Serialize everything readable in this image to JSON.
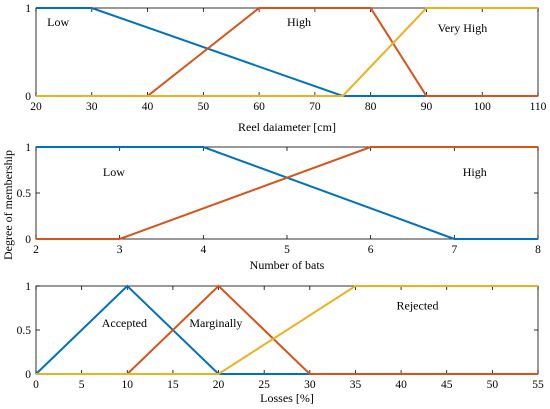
{
  "figure": {
    "ylabel": "Degree of membership"
  },
  "chart_data": [
    {
      "type": "line",
      "xlabel": "Reel daiameter [cm]",
      "ylabel": "",
      "xlim": [
        20,
        110
      ],
      "ylim": [
        0,
        1
      ],
      "xticks": [
        20,
        30,
        40,
        50,
        60,
        70,
        80,
        90,
        100,
        110
      ],
      "yticks": [
        0,
        1
      ],
      "series": [
        {
          "name": "Low",
          "color": "#0072BD",
          "x": [
            20,
            30,
            75,
            110
          ],
          "y": [
            1,
            1,
            0,
            0
          ],
          "label_at": [
            22,
            0.84
          ]
        },
        {
          "name": "High",
          "color": "#D95319",
          "x": [
            20,
            40,
            60,
            80,
            90,
            110
          ],
          "y": [
            0,
            0,
            1,
            1,
            0,
            0
          ],
          "label_at": [
            65,
            0.84
          ]
        },
        {
          "name": "Very High",
          "color": "#EDB120",
          "x": [
            20,
            75,
            90,
            110
          ],
          "y": [
            0,
            0,
            1,
            1
          ],
          "label_at": [
            92,
            0.77
          ]
        }
      ]
    },
    {
      "type": "line",
      "xlabel": "Number of bats",
      "ylabel": "",
      "xlim": [
        2,
        8
      ],
      "ylim": [
        0,
        1
      ],
      "xticks": [
        2,
        3,
        4,
        5,
        6,
        7,
        8
      ],
      "yticks": [
        0,
        0.5,
        1
      ],
      "series": [
        {
          "name": "Low",
          "color": "#0072BD",
          "x": [
            2,
            4,
            7,
            8
          ],
          "y": [
            1,
            1,
            0,
            0
          ],
          "label_at": [
            2.8,
            0.73
          ]
        },
        {
          "name": "High",
          "color": "#D95319",
          "x": [
            2,
            3,
            6,
            8
          ],
          "y": [
            0,
            0,
            1,
            1
          ],
          "label_at": [
            7.1,
            0.73
          ]
        }
      ]
    },
    {
      "type": "line",
      "xlabel": "Losses [%]",
      "ylabel": "",
      "xlim": [
        0,
        55
      ],
      "ylim": [
        0,
        1
      ],
      "xticks": [
        0,
        5,
        10,
        15,
        20,
        25,
        30,
        35,
        40,
        45,
        50,
        55
      ],
      "yticks": [
        0,
        0.5,
        1
      ],
      "series": [
        {
          "name": "Accepted",
          "color": "#0072BD",
          "x": [
            0,
            10,
            20,
            55
          ],
          "y": [
            0,
            1,
            0,
            0
          ],
          "label_at": [
            7.2,
            0.58
          ]
        },
        {
          "name": "Marginally",
          "color": "#D95319",
          "x": [
            0,
            10,
            20,
            30,
            55
          ],
          "y": [
            0,
            0,
            1,
            0,
            0
          ],
          "label_at": [
            16.8,
            0.58
          ]
        },
        {
          "name": "Rejected",
          "color": "#EDB120",
          "x": [
            0,
            20,
            35,
            55
          ],
          "y": [
            0,
            0,
            1,
            1
          ],
          "label_at": [
            39.5,
            0.78
          ]
        }
      ]
    }
  ]
}
